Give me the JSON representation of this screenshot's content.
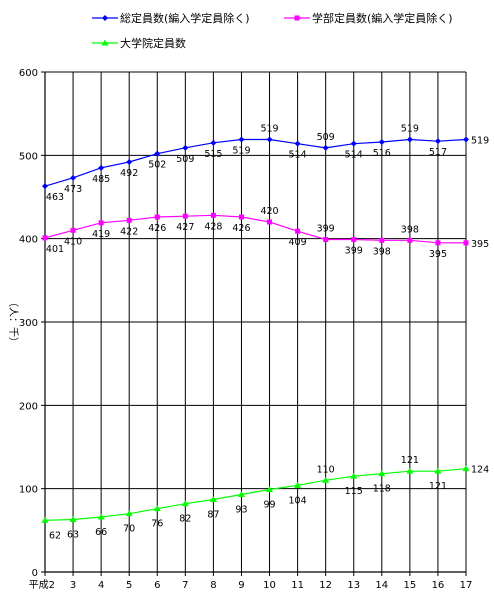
{
  "chart_data": {
    "type": "line",
    "title": "",
    "xlabel": "",
    "ylabel": "（人：千）",
    "ylim": [
      0,
      600
    ],
    "y_ticks": [
      0,
      100,
      200,
      300,
      400,
      500,
      600
    ],
    "x_tick_labels": [
      "平成2",
      "3",
      "4",
      "5",
      "6",
      "7",
      "8",
      "9",
      "10",
      "11",
      "12",
      "13",
      "14",
      "15",
      "16",
      "17"
    ],
    "grid": true,
    "legend_position": "top",
    "series": [
      {
        "name": "総定員数(編入学定員除く)",
        "color": "#0000FF",
        "marker": "diamond",
        "values": [
          463,
          473,
          485,
          492,
          502,
          509,
          515,
          519,
          519,
          514,
          509,
          514,
          516,
          519,
          517,
          519
        ]
      },
      {
        "name": "学部定員数(編入学定員除く)",
        "color": "#FF00FF",
        "marker": "square",
        "values": [
          401,
          410,
          419,
          422,
          426,
          427,
          428,
          426,
          420,
          409,
          399,
          399,
          398,
          398,
          395,
          395
        ]
      },
      {
        "name": "大学院定員数",
        "color": "#00FF00",
        "marker": "triangle",
        "values": [
          62,
          63,
          66,
          70,
          76,
          82,
          87,
          93,
          99,
          104,
          110,
          115,
          118,
          121,
          121,
          124
        ]
      }
    ]
  }
}
